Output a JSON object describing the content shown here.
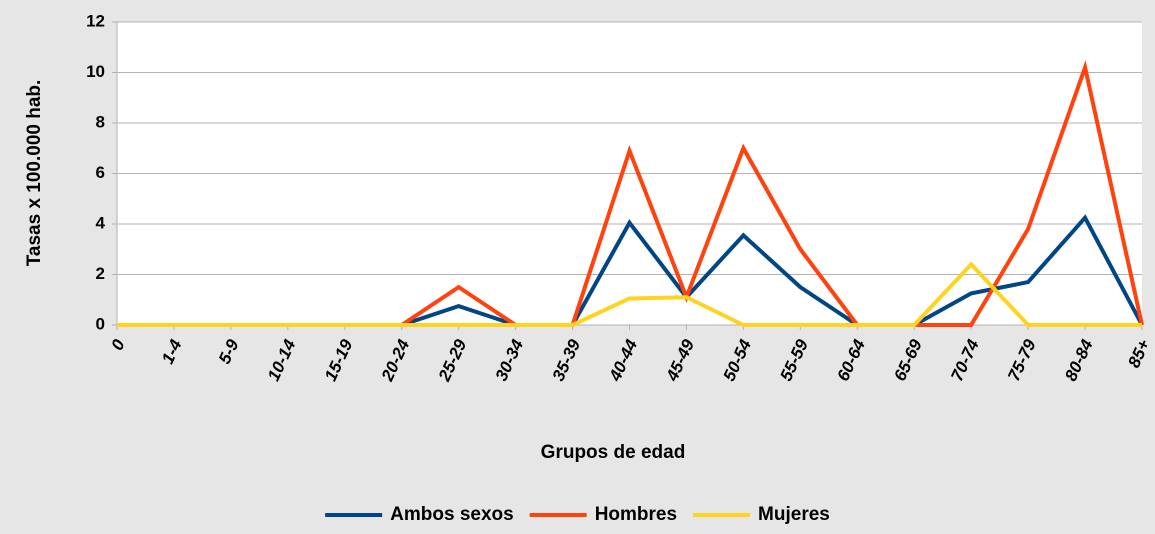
{
  "chart_data": {
    "type": "line",
    "x_label": "Grupos de edad",
    "y_label": "Tasas x 100.000 hab.",
    "categories": [
      "0",
      "1-4",
      "5-9",
      "10-14",
      "15-19",
      "20-24",
      "25-29",
      "30-34",
      "35-39",
      "40-44",
      "45-49",
      "50-54",
      "55-59",
      "60-64",
      "65-69",
      "70-74",
      "75-79",
      "80-84",
      "85+"
    ],
    "series": [
      {
        "name": "Ambos sexos",
        "color": "#004586",
        "values": [
          0,
          0,
          0,
          0,
          0,
          0,
          0.75,
          0,
          0,
          4.05,
          1.1,
          3.55,
          1.5,
          0,
          0,
          1.25,
          1.7,
          4.25,
          0
        ]
      },
      {
        "name": "Hombres",
        "color": "#ff420e",
        "values": [
          0,
          0,
          0,
          0,
          0,
          0,
          1.5,
          0,
          0,
          6.9,
          1.1,
          7.0,
          3.0,
          0,
          0,
          0,
          3.8,
          10.2,
          0
        ]
      },
      {
        "name": "Mujeres",
        "color": "#ffd320",
        "values": [
          0,
          0,
          0,
          0,
          0,
          0,
          0,
          0,
          0,
          1.05,
          1.1,
          0,
          0,
          0,
          0,
          2.4,
          0,
          0,
          0
        ]
      }
    ],
    "ylim": [
      0,
      12
    ],
    "yticks": [
      0,
      2,
      4,
      6,
      8,
      10,
      12
    ],
    "grid": true,
    "legend": "bottom"
  }
}
